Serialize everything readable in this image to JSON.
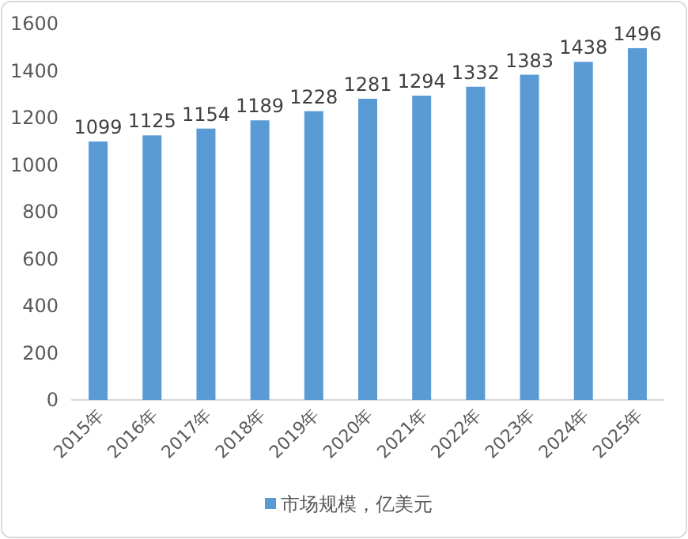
{
  "chart_data": {
    "type": "bar",
    "categories": [
      "2015年",
      "2016年",
      "2017年",
      "2018年",
      "2019年",
      "2020年",
      "2021年",
      "2022年",
      "2023年",
      "2024年",
      "2025年"
    ],
    "series": [
      {
        "name": "市场规模，亿美元",
        "color": "#5b9bd5",
        "values": [
          1099,
          1125,
          1154,
          1189,
          1228,
          1281,
          1294,
          1332,
          1383,
          1438,
          1496
        ]
      }
    ],
    "ylim": [
      0,
      1600
    ],
    "yticks": [
      0,
      200,
      400,
      600,
      800,
      1000,
      1200,
      1400,
      1600
    ],
    "data_labels": true,
    "legend": "bottom"
  }
}
